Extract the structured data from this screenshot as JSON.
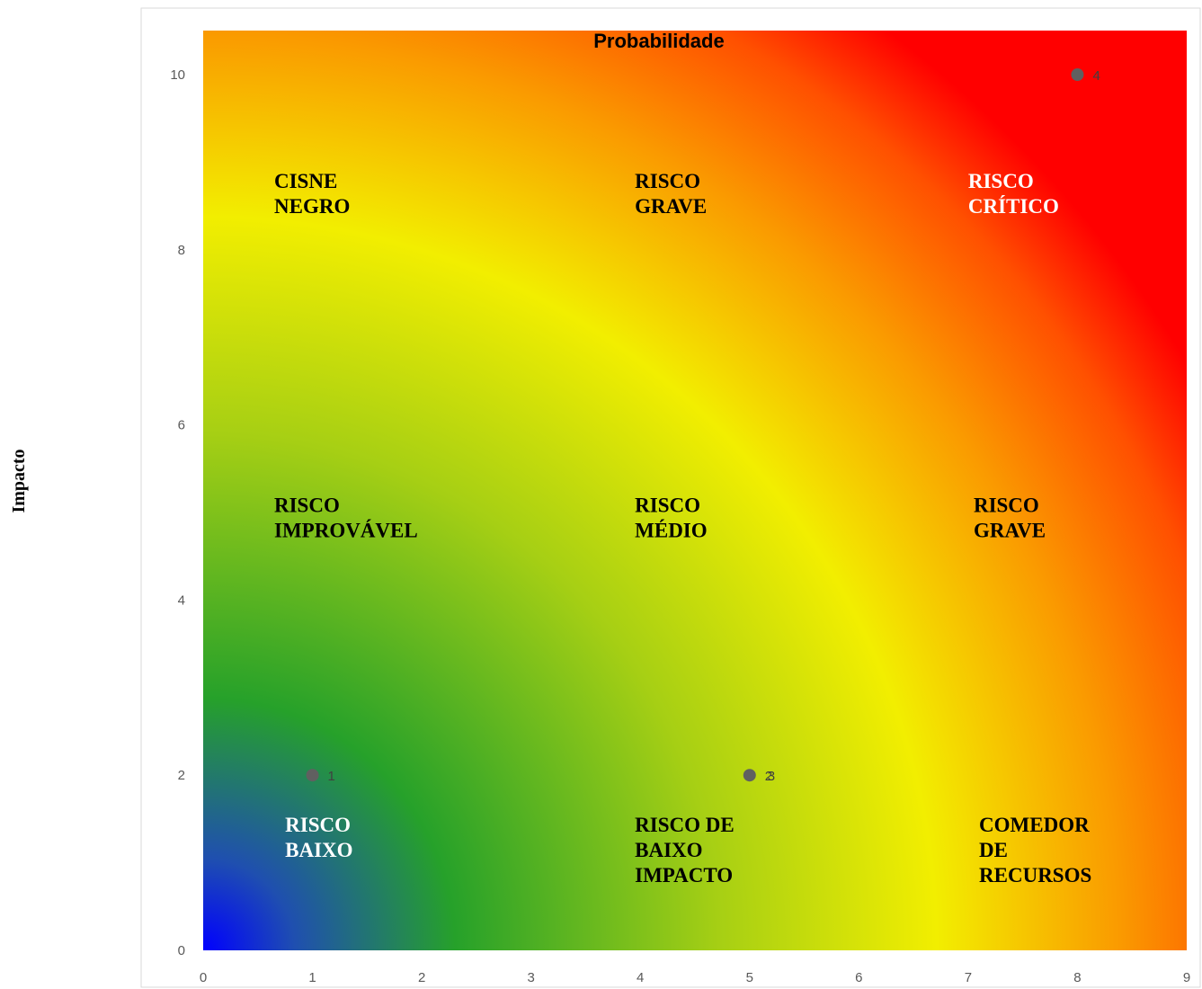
{
  "chart_data": {
    "type": "scatter",
    "title": "Probabilidade",
    "xlabel": "",
    "ylabel": "Impacto",
    "xlim": [
      0,
      9
    ],
    "ylim": [
      0,
      10
    ],
    "x_ticks": [
      "0",
      "1",
      "2",
      "3",
      "4",
      "5",
      "6",
      "7",
      "8",
      "9"
    ],
    "y_ticks": [
      "0",
      "2",
      "4",
      "6",
      "8",
      "10"
    ],
    "grid": false,
    "background": "radial gradient: blue at origin, green, yellow arc, orange, red at top-right",
    "colors": {
      "blue": "#0000ff",
      "green": "#26a12a",
      "yellow": "#f2ee00",
      "orange": "#fa9a00",
      "red": "#ff0000",
      "marker": "#606060"
    },
    "points": [
      {
        "label": "1",
        "x": 1,
        "y": 2
      },
      {
        "label": "2",
        "x": 5,
        "y": 2
      },
      {
        "label": "3",
        "x": 5,
        "y": 2
      },
      {
        "label": "4",
        "x": 8,
        "y": 10
      }
    ],
    "zones": [
      {
        "lines": [
          "CISNE",
          "NEGRO"
        ],
        "x": 0.65,
        "y": 8.5,
        "color": "#000000"
      },
      {
        "lines": [
          "RISCO",
          "GRAVE"
        ],
        "x": 3.95,
        "y": 8.5,
        "color": "#000000"
      },
      {
        "lines": [
          "RISCO",
          "CRÍTICO"
        ],
        "x": 7.0,
        "y": 8.5,
        "color": "#ffffff"
      },
      {
        "lines": [
          "RISCO",
          "IMPROVÁVEL"
        ],
        "x": 0.65,
        "y": 4.8,
        "color": "#000000"
      },
      {
        "lines": [
          "RISCO",
          "MÉDIO"
        ],
        "x": 3.95,
        "y": 4.8,
        "color": "#000000"
      },
      {
        "lines": [
          "RISCO",
          "GRAVE"
        ],
        "x": 7.05,
        "y": 4.8,
        "color": "#000000"
      },
      {
        "lines": [
          "RISCO",
          "BAIXO"
        ],
        "x": 0.75,
        "y": 1.15,
        "color": "#ffffff"
      },
      {
        "lines": [
          "RISCO DE",
          "BAIXO",
          "IMPACTO"
        ],
        "x": 3.95,
        "y": 1.15,
        "color": "#000000"
      },
      {
        "lines": [
          "COMEDOR",
          "DE",
          "RECURSOS"
        ],
        "x": 7.1,
        "y": 1.15,
        "color": "#000000"
      }
    ]
  }
}
